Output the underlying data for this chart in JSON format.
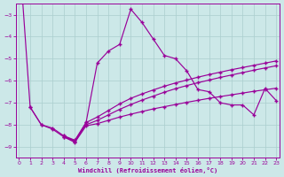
{
  "xlabel": "Windchill (Refroidissement éolien,°C)",
  "background_color": "#cce8e8",
  "grid_color": "#aacece",
  "line_color": "#990099",
  "xlim_min": -0.3,
  "xlim_max": 23.3,
  "ylim_min": -9.5,
  "ylim_max": -2.5,
  "yticks": [
    -9,
    -8,
    -7,
    -6,
    -5,
    -4,
    -3
  ],
  "xticks": [
    0,
    1,
    2,
    3,
    4,
    5,
    6,
    7,
    8,
    9,
    10,
    11,
    12,
    13,
    14,
    15,
    16,
    17,
    18,
    19,
    20,
    21,
    22,
    23
  ],
  "series": [
    [
      0,
      -7.2,
      -8.0,
      -8.15,
      -8.5,
      -8.75,
      -7.9,
      -5.2,
      -4.65,
      -4.35,
      -2.75,
      -3.35,
      -4.1,
      -4.85,
      -5.0,
      -5.55,
      -6.4,
      -6.5,
      -7.0,
      -7.1,
      -7.1,
      -7.55,
      -6.35,
      -6.9
    ],
    [
      null,
      null,
      null,
      null,
      -8.5,
      -8.7,
      -7.9,
      -7.65,
      -7.35,
      -7.05,
      -6.8,
      -6.6,
      -6.42,
      -6.25,
      -6.1,
      -5.97,
      -5.84,
      -5.72,
      -5.61,
      -5.5,
      -5.4,
      -5.3,
      -5.2,
      -5.1
    ],
    [
      null,
      null,
      null,
      null,
      -8.55,
      -8.75,
      -8.0,
      -7.8,
      -7.55,
      -7.3,
      -7.08,
      -6.88,
      -6.7,
      -6.52,
      -6.36,
      -6.22,
      -6.09,
      -5.97,
      -5.85,
      -5.74,
      -5.63,
      -5.52,
      -5.42,
      -5.32
    ],
    [
      null,
      -7.2,
      -8.0,
      -8.2,
      -8.55,
      -8.8,
      -8.05,
      -7.95,
      -7.8,
      -7.65,
      -7.52,
      -7.4,
      -7.28,
      -7.18,
      -7.08,
      -6.98,
      -6.89,
      -6.8,
      -6.72,
      -6.64,
      -6.56,
      -6.48,
      -6.41,
      -6.34
    ]
  ]
}
